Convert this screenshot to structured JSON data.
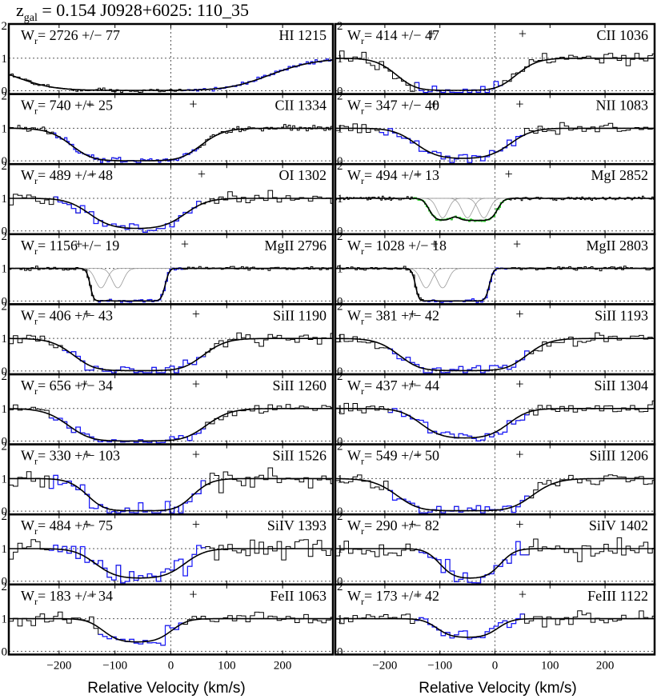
{
  "title": {
    "z_symbol": "z",
    "z_sub": "gal",
    "rest": " = 0.154  J0928+6025: 110_35"
  },
  "xlabel": "Relative Velocity (km/s)",
  "x_ticks": [
    "−200",
    "−100",
    "0",
    "100",
    "200"
  ],
  "x_tick_values": [
    -200,
    -100,
    0,
    100,
    200
  ],
  "y_ticks": [
    "0",
    "1",
    "2"
  ],
  "xlim": [
    -290,
    290
  ],
  "ylim": [
    -0.1,
    2.05
  ],
  "colors": {
    "data": "#000000",
    "fit_region": "#1a1aff",
    "mgi_region": "#22dd22",
    "model": "#000000",
    "component": "#999999",
    "reference": "#555555"
  },
  "chart_data": [
    {
      "type": "line",
      "ion": "HI 1215",
      "wr": "2726",
      "err": "77",
      "wr_label": "W",
      "wr_sub": "r",
      "pm": "+/−",
      "model": {
        "ctr": -55,
        "w": 160,
        "depth": 0.99,
        "sat": true
      },
      "fit_range": [
        20,
        290
      ],
      "noise": 0.05,
      "plus": []
    },
    {
      "type": "line",
      "ion": "CII 1036",
      "wr": "414",
      "err": "47",
      "wr_label": "W",
      "wr_sub": "r",
      "pm": "+/−",
      "model": {
        "ctr": -70,
        "w": 75,
        "depth": 0.99,
        "sat": true
      },
      "fit_range": [
        -150,
        10
      ],
      "noise": 0.18,
      "plus": [
        {
          "x": -115,
          "y": 1.75
        },
        {
          "x": 50,
          "y": 1.75
        }
      ]
    },
    {
      "type": "line",
      "ion": "CII 1334",
      "wr": "740",
      "err": "25",
      "wr_label": "W",
      "wr_sub": "r",
      "pm": "+/−",
      "model": {
        "ctr": -62,
        "w": 80,
        "depth": 1.0,
        "sat": true
      },
      "fit_range": [
        -210,
        50
      ],
      "noise": 0.08,
      "plus": [
        {
          "x": -145,
          "y": 1.75
        },
        {
          "x": 40,
          "y": 1.75
        }
      ]
    },
    {
      "type": "line",
      "ion": "NII 1083",
      "wr": "347",
      "err": "40",
      "wr_label": "W",
      "wr_sub": "r",
      "pm": "+/−",
      "model": {
        "ctr": -58,
        "w": 70,
        "depth": 0.97,
        "sat": false
      },
      "fit_range": [
        -210,
        50
      ],
      "noise": 0.15,
      "plus": [
        {
          "x": -110,
          "y": 1.75
        },
        {
          "x": 45,
          "y": 1.75
        }
      ]
    },
    {
      "type": "line",
      "ion": "OI 1302",
      "wr": "489",
      "err": "48",
      "wr_label": "W",
      "wr_sub": "r",
      "pm": "+/−",
      "model": {
        "ctr": -60,
        "w": 70,
        "depth": 0.97,
        "sat": false
      },
      "fit_range": [
        -210,
        50
      ],
      "noise": 0.16,
      "plus": [
        {
          "x": -140,
          "y": 1.75
        },
        {
          "x": 55,
          "y": 1.75
        }
      ]
    },
    {
      "type": "line",
      "ion": "MgI 2852",
      "wr": "494",
      "err": "13",
      "wr_label": "W",
      "wr_sub": "r",
      "pm": "+/−",
      "model": {
        "ctr": -55,
        "w": 60,
        "depth": 0.7,
        "sat": false,
        "lines": [
          -95,
          -50,
          -20
        ]
      },
      "fit_range": [
        -150,
        25
      ],
      "noise": 0.05,
      "green": true,
      "plus": [
        {
          "x": -140,
          "y": 1.75
        },
        {
          "x": 25,
          "y": 1.75
        }
      ]
    },
    {
      "type": "line",
      "ion": "MgII 2796",
      "wr": "1156",
      "err": "19",
      "wr_label": "W",
      "wr_sub": "r",
      "pm": "+/−",
      "model": {
        "ctr": -60,
        "w": 40,
        "depth": 1.0,
        "sat": true,
        "lines": [
          -125,
          -95
        ]
      },
      "fit_range": [
        -130,
        20
      ],
      "noise": 0.05,
      "plus": [
        {
          "x": -165,
          "y": 1.75
        },
        {
          "x": 25,
          "y": 1.75
        }
      ]
    },
    {
      "type": "line",
      "ion": "MgII 2803",
      "wr": "1028",
      "err": "18",
      "wr_label": "W",
      "wr_sub": "r",
      "pm": "+/−",
      "model": {
        "ctr": -60,
        "w": 40,
        "depth": 1.0,
        "sat": true,
        "lines": [
          -125,
          -95
        ]
      },
      "fit_range": [
        -130,
        20
      ],
      "noise": 0.05,
      "plus": [
        {
          "x": -110,
          "y": 1.75
        },
        {
          "x": 40,
          "y": 1.75
        }
      ]
    },
    {
      "type": "line",
      "ion": "SiII 1190",
      "wr": "406",
      "err": "43",
      "wr_label": "W",
      "wr_sub": "r",
      "pm": "+/−",
      "model": {
        "ctr": -58,
        "w": 80,
        "depth": 0.99,
        "sat": true
      },
      "fit_range": [
        -200,
        60
      ],
      "noise": 0.16,
      "plus": [
        {
          "x": -150,
          "y": 1.75
        },
        {
          "x": 45,
          "y": 1.75
        }
      ]
    },
    {
      "type": "line",
      "ion": "SiII 1193",
      "wr": "381",
      "err": "42",
      "wr_label": "W",
      "wr_sub": "r",
      "pm": "+/−",
      "model": {
        "ctr": -58,
        "w": 80,
        "depth": 0.99,
        "sat": true
      },
      "fit_range": [
        -200,
        60
      ],
      "noise": 0.16,
      "plus": [
        {
          "x": -150,
          "y": 1.75
        },
        {
          "x": 45,
          "y": 1.75
        }
      ]
    },
    {
      "type": "line",
      "ion": "SiII 1260",
      "wr": "656",
      "err": "34",
      "wr_label": "W",
      "wr_sub": "r",
      "pm": "+/−",
      "model": {
        "ctr": -60,
        "w": 85,
        "depth": 1.0,
        "sat": true
      },
      "fit_range": [
        -220,
        60
      ],
      "noise": 0.12,
      "plus": [
        {
          "x": -155,
          "y": 1.75
        },
        {
          "x": 45,
          "y": 1.75
        }
      ]
    },
    {
      "type": "line",
      "ion": "SiII 1304",
      "wr": "437",
      "err": "44",
      "wr_label": "W",
      "wr_sub": "r",
      "pm": "+/−",
      "model": {
        "ctr": -55,
        "w": 65,
        "depth": 0.95,
        "sat": false
      },
      "fit_range": [
        -200,
        60
      ],
      "noise": 0.15,
      "plus": [
        {
          "x": -150,
          "y": 1.75
        },
        {
          "x": 45,
          "y": 1.75
        }
      ]
    },
    {
      "type": "line",
      "ion": "SiII 1526",
      "wr": "330",
      "err": "103",
      "wr_label": "W",
      "wr_sub": "r",
      "pm": "+/−",
      "model": {
        "ctr": -55,
        "w": 65,
        "depth": 0.99,
        "sat": true
      },
      "fit_range": [
        -220,
        60
      ],
      "noise": 0.28,
      "plus": [
        {
          "x": -150,
          "y": 1.75
        },
        {
          "x": 45,
          "y": 1.75
        }
      ]
    },
    {
      "type": "line",
      "ion": "SiIII 1206",
      "wr": "549",
      "err": "50",
      "wr_label": "W",
      "wr_sub": "r",
      "pm": "+/−",
      "model": {
        "ctr": -55,
        "w": 85,
        "depth": 0.99,
        "sat": true
      },
      "fit_range": [
        -200,
        60
      ],
      "noise": 0.16,
      "plus": [
        {
          "x": -140,
          "y": 1.75
        },
        {
          "x": 45,
          "y": 1.75
        }
      ]
    },
    {
      "type": "line",
      "ion": "SiIV 1393",
      "wr": "484",
      "err": "75",
      "wr_label": "W",
      "wr_sub": "r",
      "pm": "+/−",
      "model": {
        "ctr": -55,
        "w": 65,
        "depth": 0.95,
        "sat": false
      },
      "fit_range": [
        -220,
        60
      ],
      "noise": 0.28,
      "plus": [
        {
          "x": -150,
          "y": 1.75
        },
        {
          "x": 45,
          "y": 1.75
        }
      ]
    },
    {
      "type": "line",
      "ion": "SiIV 1402",
      "wr": "290",
      "err": "82",
      "wr_label": "W",
      "wr_sub": "r",
      "pm": "+/−",
      "model": {
        "ctr": -45,
        "w": 45,
        "depth": 0.95,
        "sat": false
      },
      "fit_range": [
        -150,
        60
      ],
      "noise": 0.28,
      "plus": [
        {
          "x": -150,
          "y": 1.75
        },
        {
          "x": 45,
          "y": 1.75
        }
      ]
    },
    {
      "type": "line",
      "ion": "FeII 1063",
      "wr": "183",
      "err": "34",
      "wr_label": "W",
      "wr_sub": "r",
      "pm": "+/−",
      "model": {
        "ctr": -60,
        "w": 50,
        "depth": 0.75,
        "sat": false
      },
      "fit_range": [
        -130,
        20
      ],
      "noise": 0.18,
      "plus": [
        {
          "x": -140,
          "y": 1.75
        },
        {
          "x": 40,
          "y": 1.75
        }
      ]
    },
    {
      "type": "line",
      "ion": "FeIII 1122",
      "wr": "173",
      "err": "42",
      "wr_label": "W",
      "wr_sub": "r",
      "pm": "+/−",
      "model": {
        "ctr": -50,
        "w": 45,
        "depth": 0.6,
        "sat": false
      },
      "fit_range": [
        -150,
        50
      ],
      "noise": 0.18,
      "plus": [
        {
          "x": -140,
          "y": 1.75
        },
        {
          "x": 50,
          "y": 1.75
        }
      ]
    }
  ]
}
